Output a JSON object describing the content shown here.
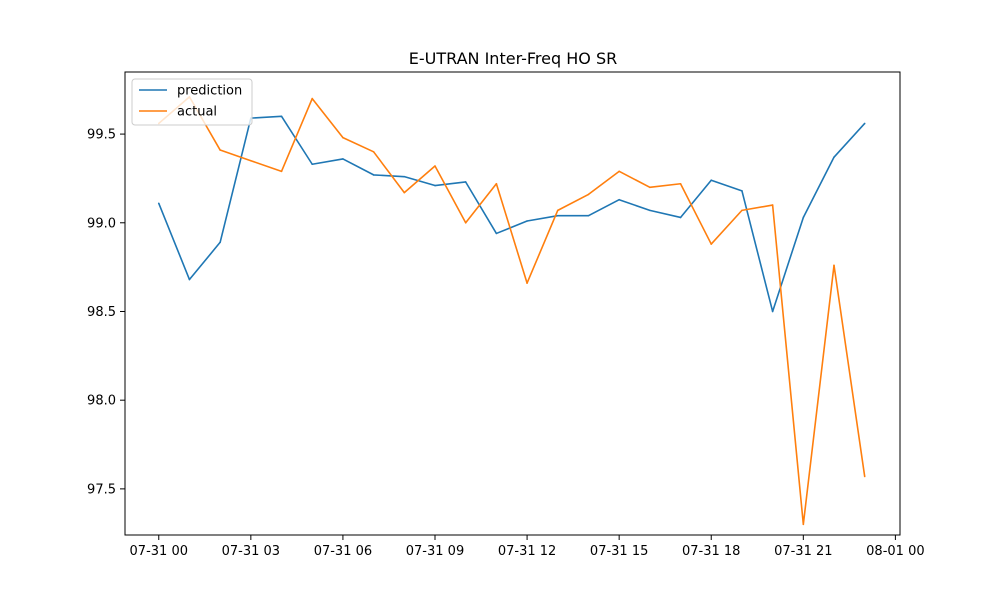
{
  "chart_data": {
    "type": "line",
    "title": "E-UTRAN Inter-Freq HO SR",
    "xlabel": "",
    "ylabel": "",
    "x": [
      "07-31 00",
      "07-31 01",
      "07-31 02",
      "07-31 03",
      "07-31 04",
      "07-31 05",
      "07-31 06",
      "07-31 07",
      "07-31 08",
      "07-31 09",
      "07-31 10",
      "07-31 11",
      "07-31 12",
      "07-31 13",
      "07-31 14",
      "07-31 15",
      "07-31 16",
      "07-31 17",
      "07-31 18",
      "07-31 19",
      "07-31 20",
      "07-31 21",
      "07-31 22",
      "07-31 23"
    ],
    "x_hours": [
      0,
      1,
      2,
      3,
      4,
      5,
      6,
      7,
      8,
      9,
      10,
      11,
      12,
      13,
      14,
      15,
      16,
      17,
      18,
      19,
      20,
      21,
      22,
      23
    ],
    "xlim_hours": [
      -1.1,
      24.15
    ],
    "ylim": [
      97.24,
      99.85
    ],
    "x_ticks": [
      {
        "hour": 0,
        "label": "07-31 00"
      },
      {
        "hour": 3,
        "label": "07-31 03"
      },
      {
        "hour": 6,
        "label": "07-31 06"
      },
      {
        "hour": 9,
        "label": "07-31 09"
      },
      {
        "hour": 12,
        "label": "07-31 12"
      },
      {
        "hour": 15,
        "label": "07-31 15"
      },
      {
        "hour": 18,
        "label": "07-31 18"
      },
      {
        "hour": 21,
        "label": "07-31 21"
      },
      {
        "hour": 24,
        "label": "08-01 00"
      }
    ],
    "y_ticks": [
      {
        "value": 97.5,
        "label": "97.5"
      },
      {
        "value": 98.0,
        "label": "98.0"
      },
      {
        "value": 98.5,
        "label": "98.5"
      },
      {
        "value": 99.0,
        "label": "99.0"
      },
      {
        "value": 99.5,
        "label": "99.5"
      }
    ],
    "grid": false,
    "legend_position": "top-left",
    "series": [
      {
        "name": "prediction",
        "color": "#1f77b4",
        "values": [
          99.11,
          98.68,
          98.89,
          99.59,
          99.6,
          99.33,
          99.36,
          99.27,
          99.26,
          99.21,
          99.23,
          98.94,
          99.01,
          99.04,
          99.04,
          99.13,
          99.07,
          99.03,
          99.24,
          99.18,
          98.5,
          99.03,
          99.37,
          99.56
        ]
      },
      {
        "name": "actual",
        "color": "#ff7f0e",
        "values": [
          99.56,
          99.71,
          99.41,
          99.35,
          99.29,
          99.7,
          99.48,
          99.4,
          99.17,
          99.32,
          99.0,
          99.22,
          98.66,
          99.07,
          99.16,
          99.29,
          99.2,
          99.22,
          98.88,
          99.07,
          99.1,
          97.3,
          98.76,
          97.57
        ]
      }
    ]
  }
}
